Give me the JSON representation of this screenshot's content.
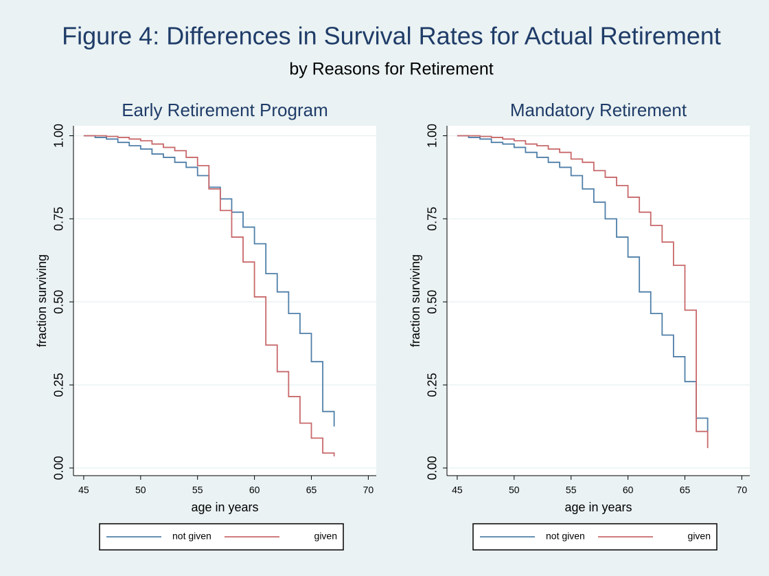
{
  "title": "Figure 4: Differences in Survival Rates for Actual Retirement",
  "subtitle": "by Reasons for Retirement",
  "chart_data": [
    {
      "type": "step",
      "title": "Early Retirement Program",
      "xlabel": "age in years",
      "ylabel": "fraction surviving",
      "x": [
        45,
        46,
        47,
        48,
        49,
        50,
        51,
        52,
        53,
        54,
        55,
        56,
        57,
        58,
        59,
        60,
        61,
        62,
        63,
        64,
        65,
        66,
        67
      ],
      "series": [
        {
          "name": "not given",
          "color": "#4f7fa8",
          "values": [
            1.0,
            0.995,
            0.99,
            0.98,
            0.97,
            0.96,
            0.945,
            0.935,
            0.92,
            0.905,
            0.88,
            0.845,
            0.81,
            0.77,
            0.725,
            0.675,
            0.585,
            0.53,
            0.465,
            0.405,
            0.32,
            0.17,
            0.125
          ]
        },
        {
          "name": "given",
          "color": "#c8686a",
          "values": [
            1.0,
            1.0,
            0.998,
            0.995,
            0.99,
            0.985,
            0.975,
            0.965,
            0.955,
            0.935,
            0.91,
            0.84,
            0.775,
            0.695,
            0.62,
            0.515,
            0.37,
            0.29,
            0.215,
            0.135,
            0.09,
            0.045,
            0.035
          ]
        }
      ],
      "xlim": [
        44.1,
        70.7
      ],
      "xticks": [
        45,
        50,
        55,
        60,
        65,
        70
      ],
      "ylim": [
        -0.023,
        1.03
      ],
      "yticks": [
        {
          "value": 0,
          "label": "0.00"
        },
        0.25,
        {
          "value": 0.5,
          "label": "0.50"
        },
        0.75,
        {
          "value": 1,
          "label": "1.00"
        }
      ],
      "grid": true,
      "legend": "bottom"
    },
    {
      "type": "step",
      "title": "Mandatory Retirement",
      "xlabel": "age in years",
      "ylabel": "fraction surviving",
      "x": [
        45,
        46,
        47,
        48,
        49,
        50,
        51,
        52,
        53,
        54,
        55,
        56,
        57,
        58,
        59,
        60,
        61,
        62,
        63,
        64,
        65,
        66,
        67
      ],
      "series": [
        {
          "name": "not given",
          "color": "#4f7fa8",
          "values": [
            1.0,
            0.995,
            0.99,
            0.98,
            0.975,
            0.965,
            0.95,
            0.935,
            0.92,
            0.905,
            0.88,
            0.84,
            0.8,
            0.75,
            0.695,
            0.635,
            0.53,
            0.465,
            0.4,
            0.335,
            0.26,
            0.15,
            0.11
          ]
        },
        {
          "name": "given",
          "color": "#c8686a",
          "values": [
            1.0,
            1.0,
            0.998,
            0.995,
            0.99,
            0.985,
            0.975,
            0.97,
            0.96,
            0.95,
            0.93,
            0.92,
            0.895,
            0.875,
            0.85,
            0.815,
            0.77,
            0.73,
            0.68,
            0.61,
            0.475,
            0.11,
            0.06
          ]
        }
      ],
      "xlim": [
        44.1,
        70.7
      ],
      "xticks": [
        45,
        50,
        55,
        60,
        65,
        70
      ],
      "ylim": [
        -0.023,
        1.03
      ],
      "yticks": [
        {
          "value": 0,
          "label": "0.00"
        },
        0.25,
        {
          "value": 0.5,
          "label": "0.50"
        },
        0.75,
        {
          "value": 1,
          "label": "1.00"
        }
      ],
      "grid": true,
      "legend": "bottom"
    }
  ]
}
